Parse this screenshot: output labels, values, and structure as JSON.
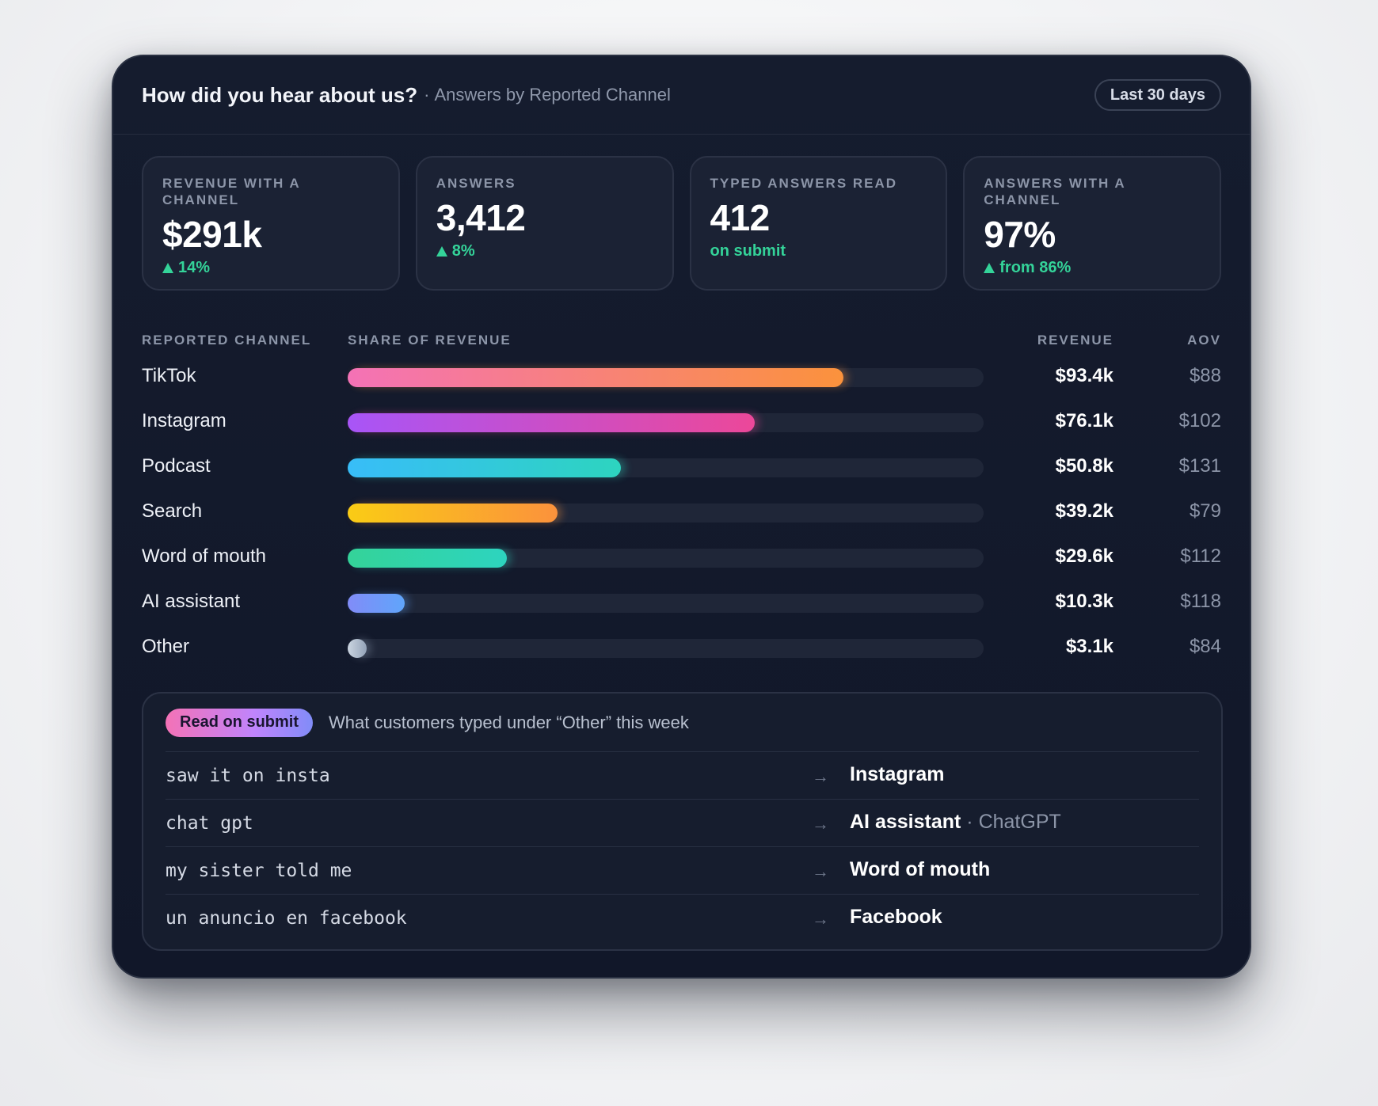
{
  "header": {
    "title": "How did you hear about us?",
    "subtitle_sep": "·",
    "subtitle": "Answers by Reported Channel",
    "range_label": "Last 30 days"
  },
  "stats": [
    {
      "label": "REVENUE WITH A CHANNEL",
      "value": "$291k",
      "delta": "14%",
      "delta_up": true
    },
    {
      "label": "ANSWERS",
      "value": "3,412",
      "delta": "8%",
      "delta_up": true
    },
    {
      "label": "TYPED ANSWERS READ",
      "value": "412",
      "delta": "on submit",
      "delta_up": false
    },
    {
      "label": "ANSWERS WITH A CHANNEL",
      "value": "97%",
      "delta": "from 86%",
      "delta_up": true
    }
  ],
  "table": {
    "col_channel": "REPORTED CHANNEL",
    "col_share": "SHARE OF REVENUE",
    "col_revenue": "REVENUE",
    "col_aov": "AOV",
    "rows": [
      {
        "channel": "TikTok",
        "share": 0.78,
        "revenue": "$93.4k",
        "aov": "$88",
        "from": "#f472b6",
        "to": "#fb923c"
      },
      {
        "channel": "Instagram",
        "share": 0.64,
        "revenue": "$76.1k",
        "aov": "$102",
        "from": "#a855f7",
        "to": "#ec4899"
      },
      {
        "channel": "Podcast",
        "share": 0.43,
        "revenue": "$50.8k",
        "aov": "$131",
        "from": "#38bdf8",
        "to": "#2dd4bf"
      },
      {
        "channel": "Search",
        "share": 0.33,
        "revenue": "$39.2k",
        "aov": "$79",
        "from": "#facc15",
        "to": "#fb923c"
      },
      {
        "channel": "Word of mouth",
        "share": 0.25,
        "revenue": "$29.6k",
        "aov": "$112",
        "from": "#34d399",
        "to": "#2dd4bf"
      },
      {
        "channel": "AI assistant",
        "share": 0.09,
        "revenue": "$10.3k",
        "aov": "$118",
        "from": "#818cf8",
        "to": "#60a5fa"
      },
      {
        "channel": "Other",
        "share": 0.03,
        "revenue": "$3.1k",
        "aov": "$84",
        "from": "#cbd5e1",
        "to": "#94a3b8"
      }
    ]
  },
  "panel": {
    "pill": "Read on submit",
    "subtitle": "What customers typed under “Other” this week",
    "arrow_glyph": "→",
    "items": [
      {
        "typed": "saw it on insta",
        "mapped": "Instagram",
        "hint": ""
      },
      {
        "typed": "chat gpt",
        "mapped": "AI assistant",
        "hint": "· ChatGPT"
      },
      {
        "typed": "my sister told me",
        "mapped": "Word of mouth",
        "hint": ""
      },
      {
        "typed": "un anuncio en facebook",
        "mapped": "Facebook",
        "hint": ""
      }
    ]
  },
  "colors": {
    "card_bg": "#131a2c",
    "positive": "#34d399",
    "muted": "#8c95a8"
  }
}
